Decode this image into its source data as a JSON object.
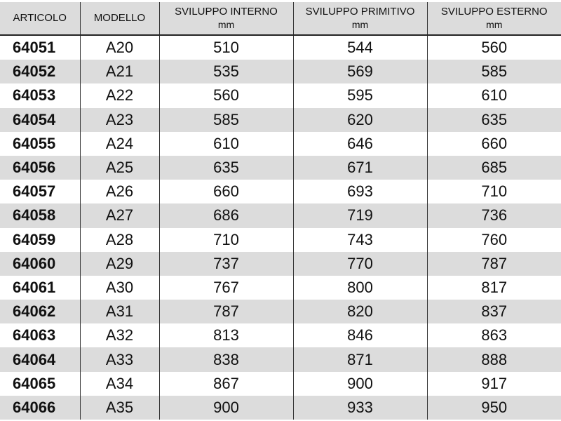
{
  "headers": [
    {
      "title": "ARTICOLO",
      "unit": ""
    },
    {
      "title": "MODELLO",
      "unit": ""
    },
    {
      "title": "SVILUPPO INTERNO",
      "unit": "mm"
    },
    {
      "title": "SVILUPPO PRIMITIVO",
      "unit": "mm"
    },
    {
      "title": "SVILUPPO ESTERNO",
      "unit": "mm"
    }
  ],
  "rows": [
    [
      "64051",
      "A20",
      "510",
      "544",
      "560"
    ],
    [
      "64052",
      "A21",
      "535",
      "569",
      "585"
    ],
    [
      "64053",
      "A22",
      "560",
      "595",
      "610"
    ],
    [
      "64054",
      "A23",
      "585",
      "620",
      "635"
    ],
    [
      "64055",
      "A24",
      "610",
      "646",
      "660"
    ],
    [
      "64056",
      "A25",
      "635",
      "671",
      "685"
    ],
    [
      "64057",
      "A26",
      "660",
      "693",
      "710"
    ],
    [
      "64058",
      "A27",
      "686",
      "719",
      "736"
    ],
    [
      "64059",
      "A28",
      "710",
      "743",
      "760"
    ],
    [
      "64060",
      "A29",
      "737",
      "770",
      "787"
    ],
    [
      "64061",
      "A30",
      "767",
      "800",
      "817"
    ],
    [
      "64062",
      "A31",
      "787",
      "820",
      "837"
    ],
    [
      "64063",
      "A32",
      "813",
      "846",
      "863"
    ],
    [
      "64064",
      "A33",
      "838",
      "871",
      "888"
    ],
    [
      "64065",
      "A34",
      "867",
      "900",
      "917"
    ],
    [
      "64066",
      "A35",
      "900",
      "933",
      "950"
    ]
  ],
  "colors": {
    "stripe": "#dcdcdc",
    "header_bg": "#dcdcdc"
  }
}
